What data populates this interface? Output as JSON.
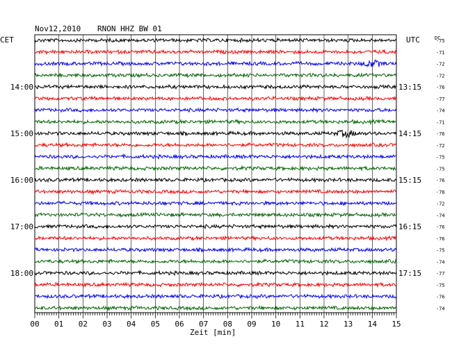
{
  "header": {
    "date": "Nov12,2010",
    "station": "RNON HHZ BW 01",
    "left_label": "CET",
    "right_label": "UTC",
    "dc_label": "DC"
  },
  "chart_data": {
    "type": "line",
    "title": "Nov12,2010  RNON HHZ BW 01",
    "xlabel": "Zeit [min]",
    "xlim": [
      0,
      15
    ],
    "x_ticks": [
      "00",
      "01",
      "02",
      "03",
      "04",
      "05",
      "06",
      "07",
      "08",
      "09",
      "10",
      "11",
      "12",
      "13",
      "14",
      "15"
    ],
    "left_hour_labels": [
      "14:00",
      "15:00",
      "16:00",
      "17:00",
      "18:00"
    ],
    "right_utc_labels": [
      "13:15",
      "14:15",
      "15:15",
      "16:15",
      "17:15"
    ],
    "trace_count": 24,
    "trace_colors": [
      "#000000",
      "#ff0000",
      "#0000ff",
      "#006400"
    ],
    "dc_offsets": [
      -75,
      -71,
      -72,
      -72,
      -76,
      -77,
      -74,
      -71,
      -76,
      -72,
      -75,
      -75,
      -76,
      -76,
      -72,
      -74,
      -76,
      -76,
      -75,
      -74,
      -77,
      -75,
      -76,
      -74
    ],
    "events": [
      {
        "trace": 2,
        "minute": 14.0,
        "description": "burst"
      },
      {
        "trace": 8,
        "minute": 12.9,
        "description": "burst"
      }
    ]
  }
}
